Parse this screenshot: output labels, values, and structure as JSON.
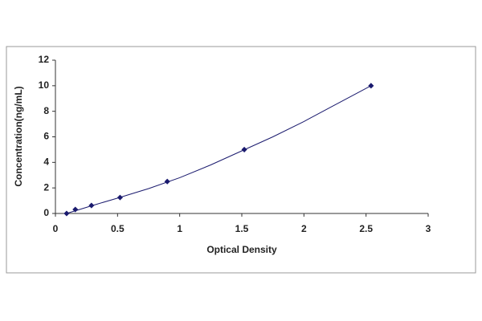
{
  "chart_data": {
    "type": "scatter",
    "xlabel": "Optical Density",
    "ylabel": "Concentration(ng/mL)",
    "series": [
      {
        "style": "markers",
        "color": "#1a1a6e",
        "x": [
          0.09,
          0.16,
          0.29,
          0.52,
          0.9,
          1.52,
          2.54
        ],
        "values": [
          0,
          0.312,
          0.625,
          1.25,
          2.5,
          5,
          10
        ]
      },
      {
        "style": "line",
        "color": "#1a1a6e",
        "x": [
          0.09,
          0.3,
          0.5,
          0.75,
          1,
          1.25,
          1.5,
          1.75,
          2,
          2.25,
          2.54
        ],
        "values": [
          0,
          0.63,
          1.2,
          1.95,
          2.8,
          3.8,
          4.9,
          6,
          7.2,
          8.5,
          10
        ]
      }
    ],
    "xlim": [
      0,
      3
    ],
    "xticks": [
      0,
      0.5,
      1,
      1.5,
      2,
      2.5,
      3
    ],
    "ylim": [
      0,
      12
    ],
    "yticks": [
      0,
      2,
      4,
      6,
      8,
      10,
      12
    ],
    "grid": false
  }
}
